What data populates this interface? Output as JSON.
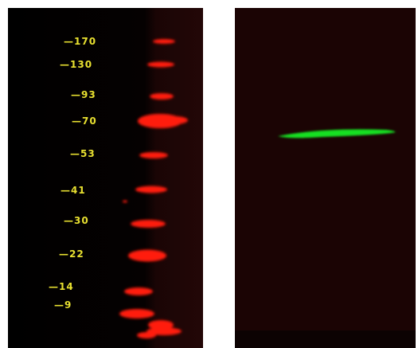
{
  "colors": {
    "background": "#ffffff",
    "left_lane_background": "#0a0303",
    "right_lane_background": "#1b0404",
    "ladder_band": "#ff1a10",
    "target_band": "#19e020",
    "marker_text": "#e8e030"
  },
  "left_lane": {
    "markers": [
      {
        "label": "—170"
      },
      {
        "label": "—130"
      },
      {
        "label": "—93"
      },
      {
        "label": "—70"
      },
      {
        "label": "—53"
      },
      {
        "label": "—41"
      },
      {
        "label": "—30"
      },
      {
        "label": "—22"
      },
      {
        "label": "—14"
      },
      {
        "label": "—9"
      }
    ]
  }
}
